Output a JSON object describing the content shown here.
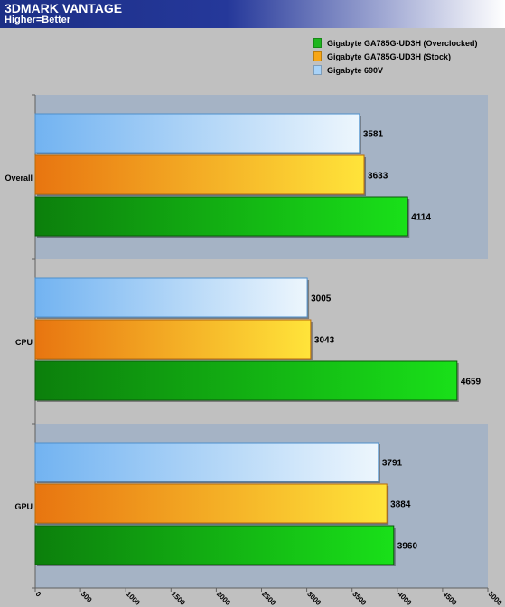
{
  "chart_data": {
    "type": "bar",
    "orientation": "horizontal",
    "title": "3DMARK VANTAGE",
    "subtitle": "Higher=Better",
    "categories": [
      "Overall",
      "CPU",
      "GPU"
    ],
    "series": [
      {
        "name": "Gigabyte GA785G-UD3H (Overclocked)",
        "color": "#1fb61f",
        "values": [
          4114,
          4659,
          3960
        ]
      },
      {
        "name": "Gigabyte GA785G-UD3H (Stock)",
        "color": "#f7a616",
        "values": [
          3633,
          3043,
          3884
        ]
      },
      {
        "name": "Gigabyte 690V",
        "color": "#a8d2f7",
        "values": [
          3581,
          3005,
          3791
        ]
      }
    ],
    "xlim": [
      0,
      5000
    ],
    "xticks": [
      0,
      500,
      1000,
      1500,
      2000,
      2500,
      3000,
      3500,
      4000,
      4500,
      5000
    ],
    "legend_position": "top-right",
    "grid": false
  }
}
